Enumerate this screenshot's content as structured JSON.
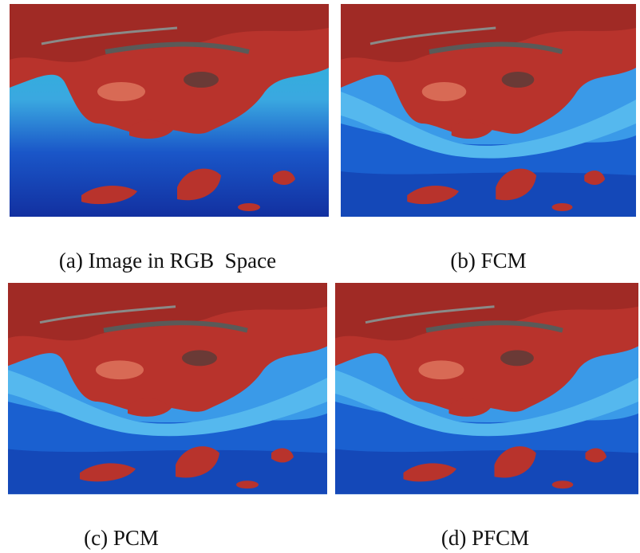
{
  "panels": [
    {
      "caption": "(a) Image in RGB  Space"
    },
    {
      "caption": "(b) FCM"
    },
    {
      "caption": "(c) PCM"
    },
    {
      "caption": "(d) PFCM"
    }
  ]
}
